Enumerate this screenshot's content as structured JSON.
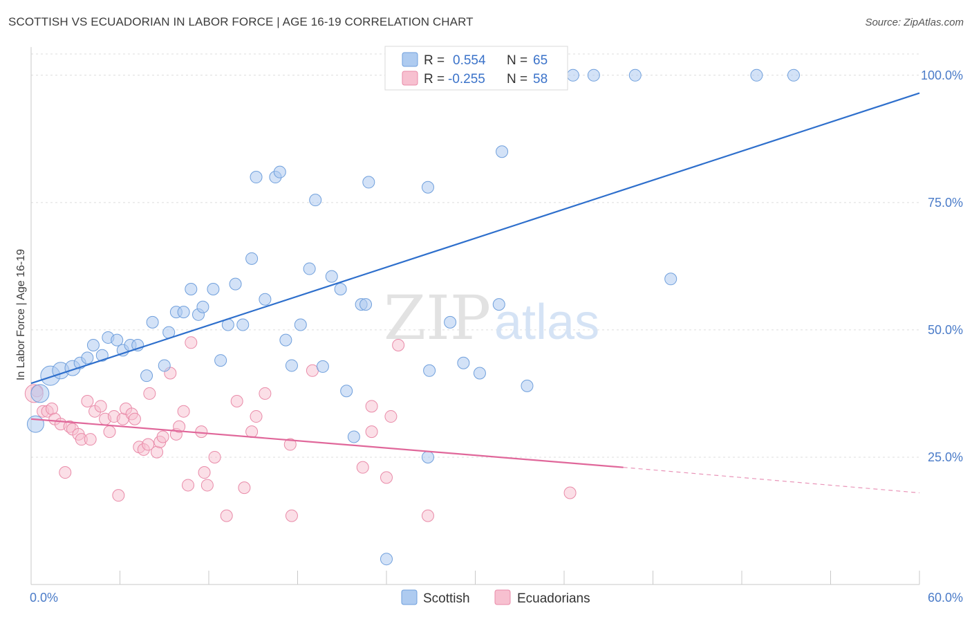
{
  "header": {
    "title": "SCOTTISH VS ECUADORIAN IN LABOR FORCE | AGE 16-19 CORRELATION CHART",
    "source": "Source: ZipAtlas.com"
  },
  "watermark": {
    "zip": "ZIP",
    "atlas": "atlas"
  },
  "colors": {
    "scottish_fill": "#aecbf0",
    "scottish_stroke": "#6f9fdc",
    "scottish_line": "#2e6fcc",
    "ecuadorian_fill": "#f7c0d0",
    "ecuadorian_stroke": "#e98aa8",
    "ecuadorian_line": "#e0679a",
    "tick_label": "#4a7bc8"
  },
  "legend": {
    "rows": [
      {
        "r_label": "R =",
        "r_value": "0.554",
        "n_label": "N =",
        "n_value": "65"
      },
      {
        "r_label": "R =",
        "r_value": "-0.255",
        "n_label": "N =",
        "n_value": "58"
      }
    ]
  },
  "chart_data": {
    "type": "scatter",
    "title": "SCOTTISH VS ECUADORIAN IN LABOR FORCE | AGE 16-19 CORRELATION CHART",
    "xlabel": "",
    "ylabel": "In Labor Force | Age 16-19",
    "xlim": [
      0,
      60
    ],
    "ylim": [
      0,
      105
    ],
    "x_tick_labels": [
      "0.0%",
      "60.0%"
    ],
    "y_ticks": [
      25,
      50,
      75,
      100
    ],
    "y_tick_labels": [
      "25.0%",
      "50.0%",
      "75.0%",
      "100.0%"
    ],
    "grid": true,
    "legend_position": "top-center",
    "series": [
      {
        "name": "Scottish",
        "r": 0.554,
        "n": 65,
        "trend": {
          "x": [
            0,
            60
          ],
          "y": [
            39.5,
            96.5
          ]
        },
        "points": [
          [
            0.3,
            31.5
          ],
          [
            0.6,
            37.5
          ],
          [
            1.3,
            41.0
          ],
          [
            2.0,
            42.0
          ],
          [
            2.8,
            42.5
          ],
          [
            3.3,
            43.5
          ],
          [
            3.8,
            44.5
          ],
          [
            4.2,
            47.0
          ],
          [
            4.8,
            45.0
          ],
          [
            5.2,
            48.5
          ],
          [
            5.8,
            48.0
          ],
          [
            6.2,
            46.0
          ],
          [
            6.7,
            47.0
          ],
          [
            7.2,
            47.0
          ],
          [
            7.8,
            41.0
          ],
          [
            8.2,
            51.5
          ],
          [
            9.0,
            43.0
          ],
          [
            9.3,
            49.5
          ],
          [
            9.8,
            53.5
          ],
          [
            10.3,
            53.5
          ],
          [
            10.8,
            58.0
          ],
          [
            11.3,
            53.0
          ],
          [
            11.6,
            54.5
          ],
          [
            12.3,
            58.0
          ],
          [
            12.8,
            44.0
          ],
          [
            13.3,
            51.0
          ],
          [
            13.8,
            59.0
          ],
          [
            14.3,
            51.0
          ],
          [
            14.9,
            64.0
          ],
          [
            15.2,
            80.0
          ],
          [
            15.8,
            56.0
          ],
          [
            16.5,
            80.0
          ],
          [
            16.8,
            81.0
          ],
          [
            17.2,
            48.0
          ],
          [
            17.6,
            43.0
          ],
          [
            18.2,
            51.0
          ],
          [
            18.8,
            62.0
          ],
          [
            19.2,
            75.5
          ],
          [
            19.7,
            42.8
          ],
          [
            20.3,
            60.5
          ],
          [
            20.9,
            58.0
          ],
          [
            21.3,
            38.0
          ],
          [
            21.8,
            29.0
          ],
          [
            22.3,
            55.0
          ],
          [
            22.6,
            55.0
          ],
          [
            22.8,
            79.0
          ],
          [
            24.0,
            5.0
          ],
          [
            24.5,
            100.0
          ],
          [
            26.8,
            25.0
          ],
          [
            26.8,
            78.0
          ],
          [
            26.9,
            42.0
          ],
          [
            28.3,
            100.0
          ],
          [
            28.3,
            51.5
          ],
          [
            29.2,
            43.5
          ],
          [
            30.0,
            100.0
          ],
          [
            30.3,
            41.5
          ],
          [
            31.6,
            55.0
          ],
          [
            31.8,
            85.0
          ],
          [
            33.5,
            39.0
          ],
          [
            36.6,
            100.0
          ],
          [
            38.0,
            100.0
          ],
          [
            40.8,
            100.0
          ],
          [
            43.2,
            60.0
          ],
          [
            49.0,
            100.0
          ],
          [
            51.5,
            100.0
          ]
        ]
      },
      {
        "name": "Ecuadorians",
        "r": -0.255,
        "n": 58,
        "trend": {
          "x": [
            0,
            40
          ],
          "y": [
            32.5,
            23.0
          ]
        },
        "trend_dashed": {
          "x": [
            40,
            60
          ],
          "y": [
            23.0,
            18.0
          ]
        },
        "points": [
          [
            0.4,
            38.0
          ],
          [
            0.8,
            34.0
          ],
          [
            1.1,
            34.0
          ],
          [
            1.4,
            34.5
          ],
          [
            1.6,
            32.5
          ],
          [
            2.0,
            31.5
          ],
          [
            2.3,
            22.0
          ],
          [
            2.6,
            31.0
          ],
          [
            2.8,
            30.5
          ],
          [
            3.2,
            29.5
          ],
          [
            3.4,
            28.5
          ],
          [
            3.8,
            36.0
          ],
          [
            4.0,
            28.5
          ],
          [
            4.3,
            34.0
          ],
          [
            4.7,
            35.0
          ],
          [
            5.0,
            32.5
          ],
          [
            5.3,
            30.0
          ],
          [
            5.6,
            33.0
          ],
          [
            5.9,
            17.5
          ],
          [
            6.2,
            32.5
          ],
          [
            6.4,
            34.5
          ],
          [
            6.8,
            33.5
          ],
          [
            7.0,
            32.5
          ],
          [
            7.3,
            27.0
          ],
          [
            7.6,
            26.5
          ],
          [
            7.9,
            27.5
          ],
          [
            8.0,
            37.5
          ],
          [
            8.5,
            26.0
          ],
          [
            8.7,
            28.0
          ],
          [
            8.9,
            29.0
          ],
          [
            9.4,
            41.5
          ],
          [
            9.8,
            29.5
          ],
          [
            10.0,
            31.0
          ],
          [
            10.3,
            34.0
          ],
          [
            10.6,
            19.5
          ],
          [
            10.8,
            47.5
          ],
          [
            11.5,
            30.0
          ],
          [
            11.7,
            22.0
          ],
          [
            11.9,
            19.5
          ],
          [
            12.4,
            25.0
          ],
          [
            13.2,
            13.5
          ],
          [
            13.9,
            36.0
          ],
          [
            14.4,
            19.0
          ],
          [
            14.9,
            30.0
          ],
          [
            15.2,
            33.0
          ],
          [
            15.8,
            37.5
          ],
          [
            17.5,
            27.5
          ],
          [
            17.6,
            13.5
          ],
          [
            19.0,
            42.0
          ],
          [
            22.4,
            23.0
          ],
          [
            23.0,
            30.0
          ],
          [
            23.0,
            35.0
          ],
          [
            24.0,
            21.0
          ],
          [
            24.3,
            33.0
          ],
          [
            24.8,
            47.0
          ],
          [
            26.8,
            13.5
          ],
          [
            36.4,
            18.0
          ],
          [
            0.2,
            37.5
          ]
        ]
      }
    ]
  }
}
